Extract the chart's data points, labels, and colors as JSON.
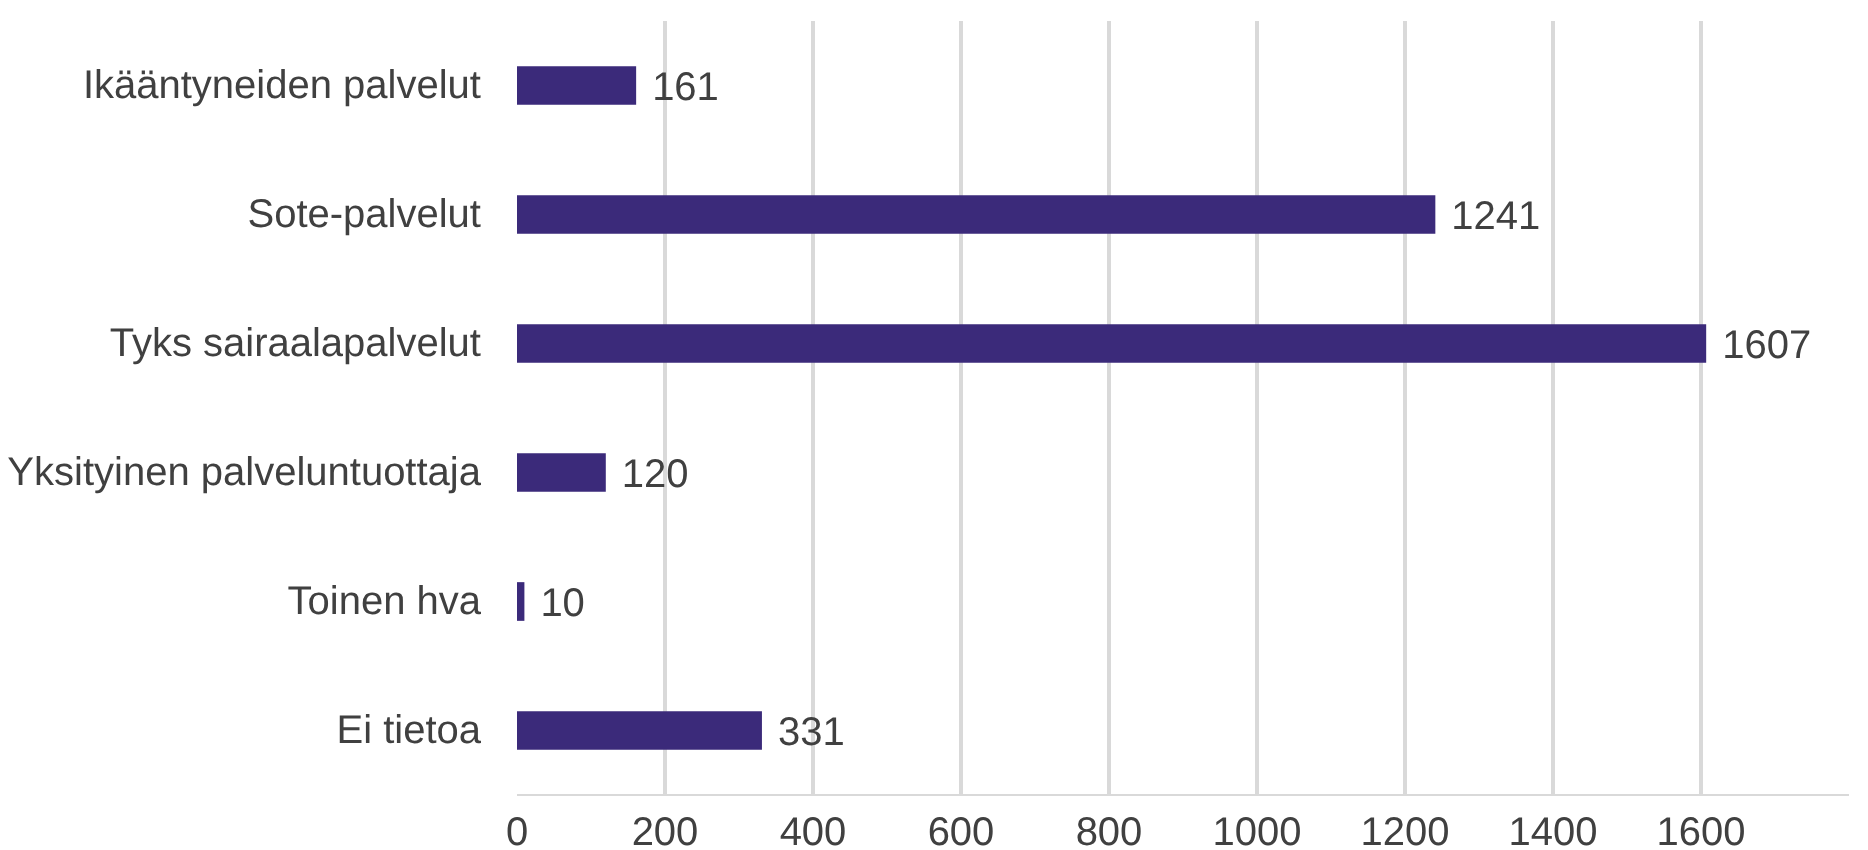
{
  "chart_data": {
    "type": "bar",
    "orientation": "horizontal",
    "categories": [
      "Ikääntyneiden palvelut",
      "Sote-palvelut",
      "Tyks sairaalapalvelut",
      "Yksityinen palveluntuottaja",
      "Toinen hva",
      "Ei tietoa"
    ],
    "values": [
      161,
      1241,
      1607,
      120,
      10,
      331
    ],
    "color": "#3b2a7a",
    "xlim": [
      0,
      1800
    ],
    "xticks": [
      0,
      200,
      400,
      600,
      800,
      1000,
      1200,
      1400,
      1600
    ],
    "grid": "x",
    "data_labels": true
  }
}
